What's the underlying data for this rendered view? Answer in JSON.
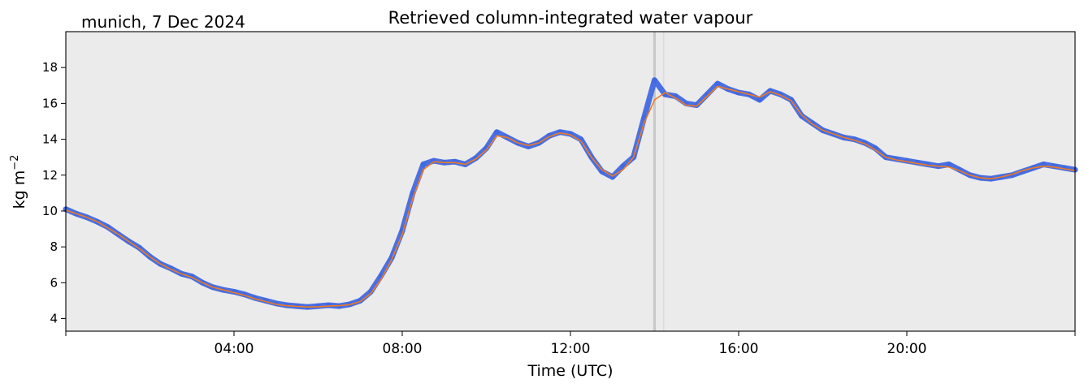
{
  "header": {
    "location_date": "munich, 7 Dec 2024"
  },
  "chart_data": {
    "type": "line",
    "title": "Retrieved column-integrated water vapour",
    "xlabel": "Time (UTC)",
    "ylabel": "kg m",
    "ylabel_exponent": "−2",
    "xlim": [
      0,
      24
    ],
    "ylim": [
      3.3,
      20
    ],
    "grid": false,
    "background": "#ebebeb",
    "x_ticks": [
      {
        "value": 4,
        "label": "04:00"
      },
      {
        "value": 8,
        "label": "08:00"
      },
      {
        "value": 12,
        "label": "12:00"
      },
      {
        "value": 16,
        "label": "16:00"
      },
      {
        "value": 20,
        "label": "20:00"
      }
    ],
    "y_ticks": [
      {
        "value": 4,
        "label": "4"
      },
      {
        "value": 6,
        "label": "6"
      },
      {
        "value": 8,
        "label": "8"
      },
      {
        "value": 10,
        "label": "10"
      },
      {
        "value": 12,
        "label": "12"
      },
      {
        "value": 14,
        "label": "14"
      },
      {
        "value": 16,
        "label": "16"
      },
      {
        "value": 18,
        "label": "18"
      }
    ],
    "series": [
      {
        "role": "raw",
        "color": "#4169e1",
        "x": [
          0,
          0.25,
          0.5,
          0.75,
          1.0,
          1.25,
          1.5,
          1.75,
          2.0,
          2.25,
          2.5,
          2.75,
          3.0,
          3.25,
          3.5,
          3.75,
          4.0,
          4.25,
          4.5,
          4.75,
          5.0,
          5.25,
          5.5,
          5.75,
          6.0,
          6.25,
          6.5,
          6.75,
          7.0,
          7.25,
          7.5,
          7.75,
          8.0,
          8.25,
          8.5,
          8.75,
          9.0,
          9.25,
          9.5,
          9.75,
          10.0,
          10.25,
          10.5,
          10.75,
          11.0,
          11.25,
          11.5,
          11.75,
          12.0,
          12.25,
          12.5,
          12.75,
          13.0,
          13.25,
          13.5,
          13.75,
          14.0,
          14.25,
          14.5,
          14.75,
          15.0,
          15.25,
          15.5,
          15.75,
          16.0,
          16.25,
          16.5,
          16.75,
          17.0,
          17.25,
          17.5,
          17.75,
          18.0,
          18.25,
          18.5,
          18.75,
          19.0,
          19.25,
          19.5,
          19.75,
          20.0,
          20.25,
          20.5,
          20.75,
          21.0,
          21.25,
          21.5,
          21.75,
          22.0,
          22.25,
          22.5,
          22.75,
          23.0,
          23.25,
          23.5,
          23.75,
          24.0
        ],
        "y": [
          10.1,
          9.85,
          9.65,
          9.4,
          9.1,
          8.7,
          8.3,
          7.95,
          7.45,
          7.05,
          6.8,
          6.5,
          6.35,
          6.0,
          5.75,
          5.6,
          5.5,
          5.35,
          5.15,
          5.0,
          4.85,
          4.75,
          4.7,
          4.65,
          4.7,
          4.75,
          4.7,
          4.8,
          5.0,
          5.5,
          6.4,
          7.4,
          8.9,
          11.0,
          12.6,
          12.8,
          12.7,
          12.75,
          12.6,
          12.95,
          13.5,
          14.4,
          14.1,
          13.8,
          13.6,
          13.8,
          14.2,
          14.4,
          14.3,
          14.0,
          13.0,
          12.2,
          11.9,
          12.5,
          13.0,
          15.2,
          17.3,
          16.5,
          16.4,
          16.0,
          15.9,
          16.5,
          17.1,
          16.8,
          16.6,
          16.5,
          16.2,
          16.7,
          16.5,
          16.2,
          15.3,
          14.9,
          14.5,
          14.3,
          14.1,
          14.0,
          13.8,
          13.5,
          13.0,
          12.9,
          12.8,
          12.7,
          12.6,
          12.5,
          12.6,
          12.3,
          12.0,
          11.85,
          11.8,
          11.9,
          12.0,
          12.2,
          12.4,
          12.6,
          12.5,
          12.4,
          12.3
        ]
      },
      {
        "role": "smoothed",
        "color": "#f07a22",
        "x": [
          0,
          0.25,
          0.5,
          0.75,
          1.0,
          1.25,
          1.5,
          1.75,
          2.0,
          2.25,
          2.5,
          2.75,
          3.0,
          3.25,
          3.5,
          3.75,
          4.0,
          4.25,
          4.5,
          4.75,
          5.0,
          5.25,
          5.5,
          5.75,
          6.0,
          6.25,
          6.5,
          6.75,
          7.0,
          7.25,
          7.5,
          7.75,
          8.0,
          8.25,
          8.5,
          8.75,
          9.0,
          9.25,
          9.5,
          9.75,
          10.0,
          10.25,
          10.5,
          10.75,
          11.0,
          11.25,
          11.5,
          11.75,
          12.0,
          12.25,
          12.5,
          12.75,
          13.0,
          13.25,
          13.5,
          13.75,
          14.0,
          14.25,
          14.5,
          14.75,
          15.0,
          15.25,
          15.5,
          15.75,
          16.0,
          16.25,
          16.5,
          16.75,
          17.0,
          17.25,
          17.5,
          17.75,
          18.0,
          18.25,
          18.5,
          18.75,
          19.0,
          19.25,
          19.5,
          19.75,
          20.0,
          20.25,
          20.5,
          20.75,
          21.0,
          21.25,
          21.5,
          21.75,
          22.0,
          22.25,
          22.5,
          22.75,
          23.0,
          23.25,
          23.5,
          23.75,
          24.0
        ],
        "y": [
          10.05,
          9.85,
          9.65,
          9.4,
          9.05,
          8.7,
          8.3,
          7.9,
          7.45,
          7.05,
          6.75,
          6.5,
          6.3,
          6.0,
          5.75,
          5.6,
          5.45,
          5.3,
          5.1,
          4.95,
          4.8,
          4.72,
          4.68,
          4.65,
          4.66,
          4.7,
          4.72,
          4.78,
          4.95,
          5.4,
          6.2,
          7.3,
          8.7,
          10.7,
          12.3,
          12.75,
          12.7,
          12.7,
          12.6,
          12.9,
          13.4,
          14.2,
          14.1,
          13.8,
          13.65,
          13.8,
          14.15,
          14.35,
          14.25,
          13.9,
          13.0,
          12.3,
          11.95,
          12.3,
          13.0,
          14.9,
          16.2,
          16.6,
          16.3,
          15.9,
          15.85,
          16.4,
          16.95,
          16.8,
          16.65,
          16.5,
          16.35,
          16.65,
          16.45,
          16.15,
          15.35,
          14.85,
          14.5,
          14.3,
          14.1,
          13.95,
          13.75,
          13.4,
          13.0,
          12.85,
          12.75,
          12.65,
          12.55,
          12.5,
          12.45,
          12.25,
          12.0,
          11.85,
          11.8,
          11.9,
          12.05,
          12.25,
          12.4,
          12.5,
          12.45,
          12.35,
          12.25
        ]
      }
    ],
    "gap_bands": [
      {
        "x0": 13.97,
        "x1": 14.03,
        "color": "#c8c8c8"
      },
      {
        "x0": 14.2,
        "x1": 14.23,
        "color": "#dcdcdc"
      }
    ]
  }
}
